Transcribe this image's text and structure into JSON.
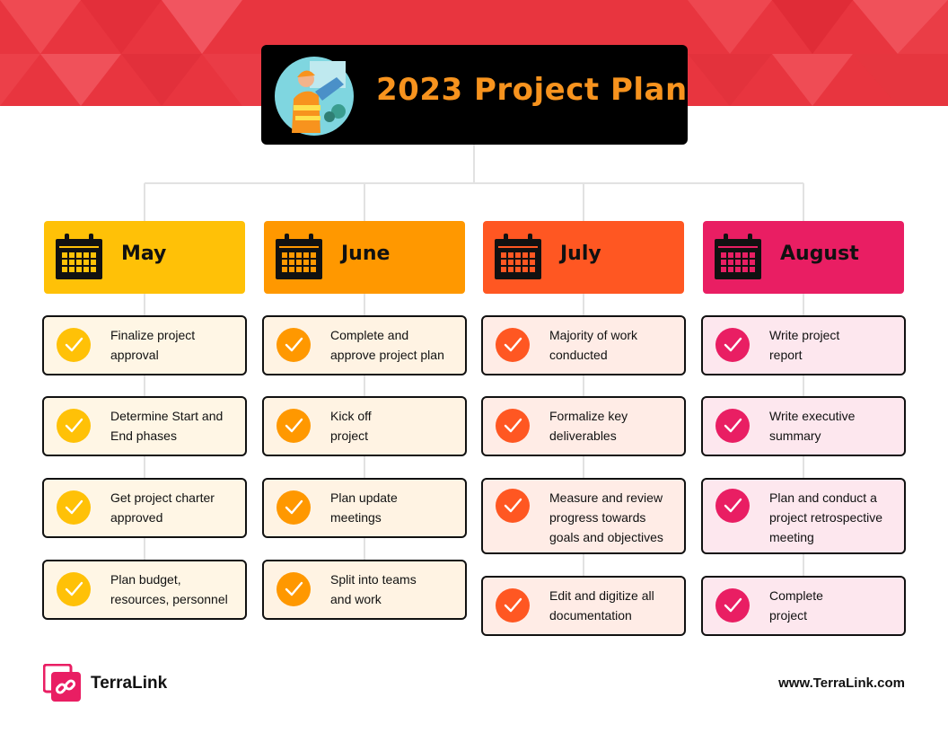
{
  "title": "2023 Project Plan",
  "colors": {
    "banner": "#e8353f",
    "title_text": "#f7931e",
    "may": "#ffc107",
    "june": "#ff9800",
    "july": "#ff5722",
    "august": "#e91e63"
  },
  "icons": {
    "title": "worker-illustration",
    "month": "calendar-icon",
    "task": "checkmark-icon",
    "logo": "terralink-logo-icon"
  },
  "months": [
    {
      "name": "May",
      "color": "#ffc107",
      "card_bg": "#fff6e5",
      "tasks": [
        "Finalize project\napproval",
        "Determine Start and\nEnd phases",
        "Get project charter\napproved",
        "Plan budget,\nresources, personnel"
      ]
    },
    {
      "name": "June",
      "color": "#ff9800",
      "card_bg": "#fff3e3",
      "tasks": [
        "Complete and\napprove project plan",
        "Kick off\nproject",
        "Plan update\nmeetings",
        "Split into teams\nand work"
      ]
    },
    {
      "name": "July",
      "color": "#ff5722",
      "card_bg": "#ffece6",
      "tasks": [
        "Majority of work\nconducted",
        "Formalize key\ndeliverables",
        "Measure and review\nprogress towards\ngoals and objectives",
        "Edit and digitize all\ndocumentation"
      ]
    },
    {
      "name": "August",
      "color": "#e91e63",
      "card_bg": "#fde7ee",
      "tasks": [
        "Write project\nreport",
        "Write executive\nsummary",
        "Plan and conduct a\nproject retrospective\nmeeting",
        "Complete\nproject"
      ]
    }
  ],
  "footer": {
    "brand": "TerraLink",
    "url": "www.TerraLink.com"
  }
}
